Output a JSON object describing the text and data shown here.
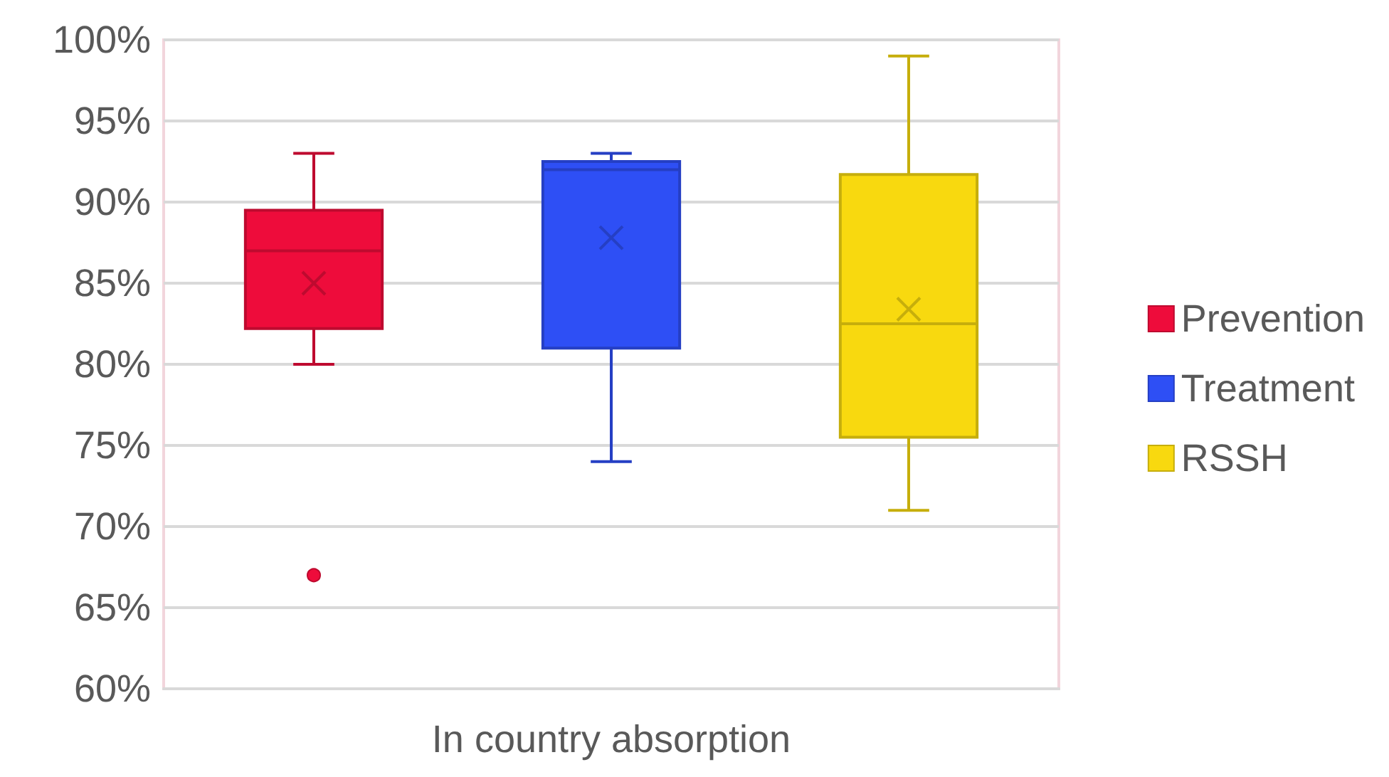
{
  "chart_data": {
    "type": "box",
    "categories": [
      "In country absorption"
    ],
    "series": [
      {
        "name": "Prevention",
        "color": "#ee0c3b",
        "boxes": [
          {
            "low": 80,
            "q1": 82.2,
            "median": 87,
            "q3": 89.5,
            "high": 93,
            "mean": 85,
            "outliers": [
              67
            ]
          }
        ]
      },
      {
        "name": "Treatment",
        "color": "#2e4ff5",
        "boxes": [
          {
            "low": 74,
            "q1": 81,
            "median": 92,
            "q3": 92.5,
            "high": 93,
            "mean": 87.8
          }
        ]
      },
      {
        "name": "RSSH",
        "color": "#f8d90f",
        "boxes": [
          {
            "low": 71,
            "q1": 75.5,
            "median": 82.5,
            "q3": 91.7,
            "high": 99,
            "mean": 83.4
          }
        ]
      }
    ],
    "ylim": [
      60,
      100
    ],
    "yticks": [
      {
        "value": 60,
        "label": "60%"
      },
      {
        "value": 65,
        "label": "65%"
      },
      {
        "value": 70,
        "label": "70%"
      },
      {
        "value": 75,
        "label": "75%"
      },
      {
        "value": 80,
        "label": "80%"
      },
      {
        "value": 85,
        "label": "85%"
      },
      {
        "value": 90,
        "label": "90%"
      },
      {
        "value": 95,
        "label": "95%"
      },
      {
        "value": 100,
        "label": "100%"
      }
    ],
    "grid": "y",
    "legend": "right"
  }
}
